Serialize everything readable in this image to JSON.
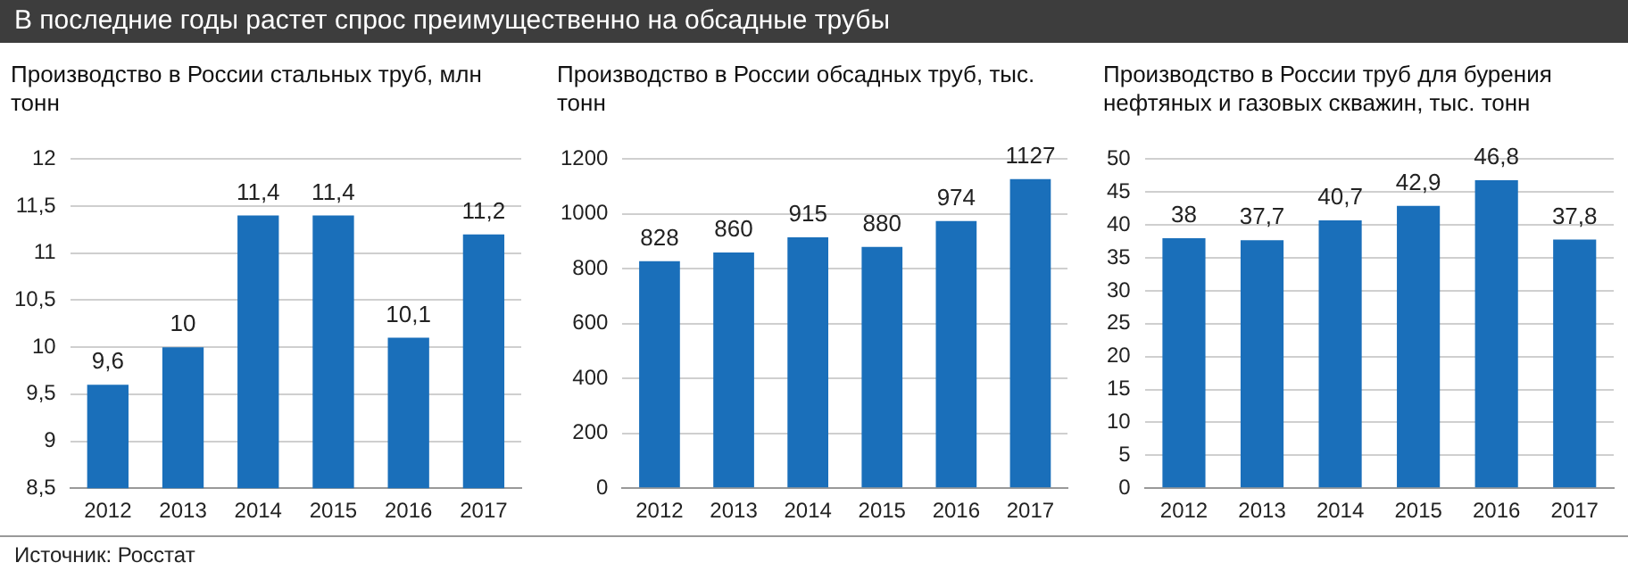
{
  "chart_data": [
    {
      "type": "other",
      "title": "В последние годы растет спрос преимущественно на обсадные трубы",
      "annotations": [
        "Источник: Росстат"
      ]
    },
    {
      "type": "bar",
      "title": "Производство в России стальных труб, млн тонн",
      "categories": [
        "2012",
        "2013",
        "2014",
        "2015",
        "2016",
        "2017"
      ],
      "values": [
        9.6,
        10,
        11.4,
        11.4,
        10.1,
        11.2
      ],
      "value_labels": [
        "9,6",
        "10",
        "11,4",
        "11,4",
        "10,1",
        "11,2"
      ],
      "color": "#1a6fba",
      "ylim": [
        8.5,
        12
      ],
      "yticks": [
        {
          "value": 8.5,
          "label": "8,5"
        },
        9,
        {
          "value": 9.5,
          "label": "9,5"
        },
        10,
        {
          "value": 10.5,
          "label": "10,5"
        },
        11,
        {
          "value": 11.5,
          "label": "11,5"
        },
        12
      ],
      "grid": "y"
    },
    {
      "type": "bar",
      "title": "Производство в России обсадных труб, тыс. тонн",
      "categories": [
        "2012",
        "2013",
        "2014",
        "2015",
        "2016",
        "2017"
      ],
      "values": [
        828,
        860,
        915,
        880,
        974,
        1127
      ],
      "value_labels": [
        "828",
        "860",
        "915",
        "880",
        "974",
        "1127"
      ],
      "color": "#1a6fba",
      "ylim": [
        0,
        1200
      ],
      "yticks": [
        0,
        200,
        400,
        600,
        800,
        1000,
        1200
      ],
      "grid": "y"
    },
    {
      "type": "bar",
      "title": "Производство в России труб для бурения нефтяных и газовых скважин, тыс. тонн",
      "categories": [
        "2012",
        "2013",
        "2014",
        "2015",
        "2016",
        "2017"
      ],
      "values": [
        38,
        37.7,
        40.7,
        42.9,
        46.8,
        37.8
      ],
      "value_labels": [
        "38",
        "37,7",
        "40,7",
        "42,9",
        "46,8",
        "37,8"
      ],
      "color": "#1a6fba",
      "ylim": [
        0,
        50
      ],
      "yticks": [
        0,
        5,
        10,
        15,
        20,
        25,
        30,
        35,
        40,
        45,
        50
      ],
      "grid": "y"
    }
  ]
}
